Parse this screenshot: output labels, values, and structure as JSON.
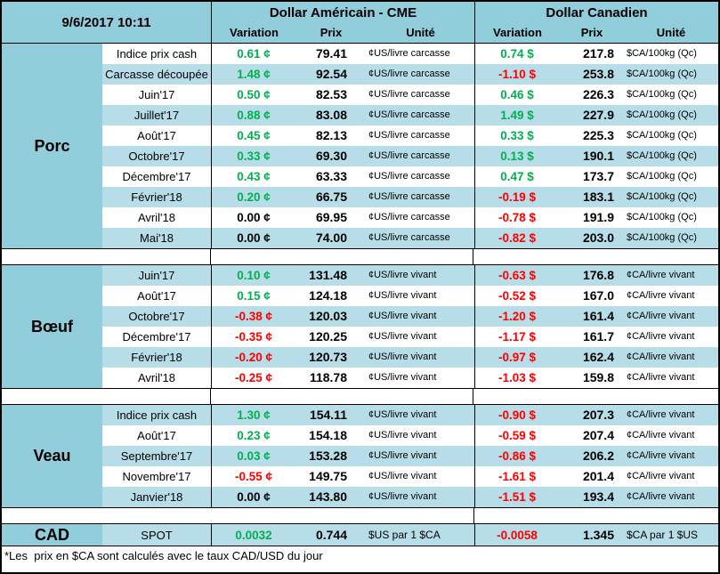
{
  "header": {
    "datetime": "9/6/2017 10:11",
    "usd_group_title": "Dollar Américain - CME",
    "cad_group_title": "Dollar Canadien",
    "col_variation": "Variation",
    "col_prix": "Prix",
    "col_unite": "Unité"
  },
  "colors": {
    "header_bg": "#92CDDC",
    "stripe_bg": "#B7DEE8",
    "positive": "#00B050",
    "negative": "#FF0000",
    "neutral": "#000000"
  },
  "sections": [
    {
      "label": "Porc",
      "first_row_striped": false,
      "rows": [
        {
          "label": "Indice prix cash",
          "us_var": "0.61 ¢",
          "us_prix": "79.41",
          "us_unit": "¢US/livre carcasse",
          "ca_var": "0.74 $",
          "ca_prix": "217.8",
          "ca_unit": "$CA/100kg (Qc)"
        },
        {
          "label": "Carcasse découpée",
          "us_var": "1.48 ¢",
          "us_prix": "92.54",
          "us_unit": "¢US/livre carcasse",
          "ca_var": "-1.10 $",
          "ca_prix": "253.8",
          "ca_unit": "$CA/100kg (Qc)"
        },
        {
          "label": "Juin'17",
          "us_var": "0.50 ¢",
          "us_prix": "82.53",
          "us_unit": "¢US/livre carcasse",
          "ca_var": "0.46 $",
          "ca_prix": "226.3",
          "ca_unit": "$CA/100kg (Qc)"
        },
        {
          "label": "Juillet'17",
          "us_var": "0.88 ¢",
          "us_prix": "83.08",
          "us_unit": "¢US/livre carcasse",
          "ca_var": "1.49 $",
          "ca_prix": "227.9",
          "ca_unit": "$CA/100kg (Qc)"
        },
        {
          "label": "Août'17",
          "us_var": "0.45 ¢",
          "us_prix": "82.13",
          "us_unit": "¢US/livre carcasse",
          "ca_var": "0.33 $",
          "ca_prix": "225.3",
          "ca_unit": "$CA/100kg (Qc)"
        },
        {
          "label": "Octobre'17",
          "us_var": "0.33 ¢",
          "us_prix": "69.30",
          "us_unit": "¢US/livre carcasse",
          "ca_var": "0.13 $",
          "ca_prix": "190.1",
          "ca_unit": "$CA/100kg (Qc)"
        },
        {
          "label": "Décembre'17",
          "us_var": "0.43 ¢",
          "us_prix": "63.33",
          "us_unit": "¢US/livre carcasse",
          "ca_var": "0.47 $",
          "ca_prix": "173.7",
          "ca_unit": "$CA/100kg (Qc)"
        },
        {
          "label": "Février'18",
          "us_var": "0.20 ¢",
          "us_prix": "66.75",
          "us_unit": "¢US/livre carcasse",
          "ca_var": "-0.19 $",
          "ca_prix": "183.1",
          "ca_unit": "$CA/100kg (Qc)"
        },
        {
          "label": "Avril'18",
          "us_var": "0.00 ¢",
          "us_prix": "69.95",
          "us_unit": "¢US/livre carcasse",
          "ca_var": "-0.78 $",
          "ca_prix": "191.9",
          "ca_unit": "$CA/100kg (Qc)"
        },
        {
          "label": "Mai'18",
          "us_var": "0.00 ¢",
          "us_prix": "74.00",
          "us_unit": "¢US/livre carcasse",
          "ca_var": "-0.82 $",
          "ca_prix": "203.0",
          "ca_unit": "$CA/100kg (Qc)"
        }
      ]
    },
    {
      "label": "Bœuf",
      "first_row_striped": true,
      "rows": [
        {
          "label": "Juin'17",
          "us_var": "0.10 ¢",
          "us_prix": "131.48",
          "us_unit": "¢US/livre vivant",
          "ca_var": "-0.63 $",
          "ca_prix": "176.8",
          "ca_unit": "¢CA/livre vivant"
        },
        {
          "label": "Août'17",
          "us_var": "0.15 ¢",
          "us_prix": "124.18",
          "us_unit": "¢US/livre vivant",
          "ca_var": "-0.52 $",
          "ca_prix": "167.0",
          "ca_unit": "¢CA/livre vivant"
        },
        {
          "label": "Octobre'17",
          "us_var": "-0.38 ¢",
          "us_prix": "120.03",
          "us_unit": "¢US/livre vivant",
          "ca_var": "-1.20 $",
          "ca_prix": "161.4",
          "ca_unit": "¢CA/livre vivant"
        },
        {
          "label": "Décembre'17",
          "us_var": "-0.35 ¢",
          "us_prix": "120.25",
          "us_unit": "¢US/livre vivant",
          "ca_var": "-1.17 $",
          "ca_prix": "161.7",
          "ca_unit": "¢CA/livre vivant"
        },
        {
          "label": "Février'18",
          "us_var": "-0.20 ¢",
          "us_prix": "120.73",
          "us_unit": "¢US/livre vivant",
          "ca_var": "-0.97 $",
          "ca_prix": "162.4",
          "ca_unit": "¢CA/livre vivant"
        },
        {
          "label": "Avril'18",
          "us_var": "-0.25 ¢",
          "us_prix": "118.78",
          "us_unit": "¢US/livre vivant",
          "ca_var": "-1.03 $",
          "ca_prix": "159.8",
          "ca_unit": "¢CA/livre vivant"
        }
      ]
    },
    {
      "label": "Veau",
      "first_row_striped": true,
      "rows": [
        {
          "label": "Indice prix cash",
          "us_var": "1.30 ¢",
          "us_prix": "154.11",
          "us_unit": "¢US/livre vivant",
          "ca_var": "-0.90 $",
          "ca_prix": "207.3",
          "ca_unit": "¢CA/livre vivant"
        },
        {
          "label": "Août'17",
          "us_var": "0.23 ¢",
          "us_prix": "154.18",
          "us_unit": "¢US/livre vivant",
          "ca_var": "-0.59 $",
          "ca_prix": "207.4",
          "ca_unit": "¢CA/livre vivant"
        },
        {
          "label": "Septembre'17",
          "us_var": "0.03 ¢",
          "us_prix": "153.28",
          "us_unit": "¢US/livre vivant",
          "ca_var": "-0.86 $",
          "ca_prix": "206.2",
          "ca_unit": "¢CA/livre vivant"
        },
        {
          "label": "Novembre'17",
          "us_var": "-0.55 ¢",
          "us_prix": "149.75",
          "us_unit": "¢US/livre vivant",
          "ca_var": "-1.61 $",
          "ca_prix": "201.4",
          "ca_unit": "¢CA/livre vivant"
        },
        {
          "label": "Janvier'18",
          "us_var": "0.00 ¢",
          "us_prix": "143.80",
          "us_unit": "¢US/livre vivant",
          "ca_var": "-1.51 $",
          "ca_prix": "193.4",
          "ca_unit": "¢CA/livre vivant"
        }
      ]
    }
  ],
  "cad_row": {
    "label": "CAD",
    "sublabel": "SPOT",
    "us_var": "0.0032",
    "us_prix": "0.744",
    "us_unit": "$US par 1 $CA",
    "ca_var": "-0.0058",
    "ca_prix": "1.345",
    "ca_unit": "$CA par 1 $US"
  },
  "footnote": "*Les  prix en $CA sont calculés avec le taux CAD/USD du jour"
}
